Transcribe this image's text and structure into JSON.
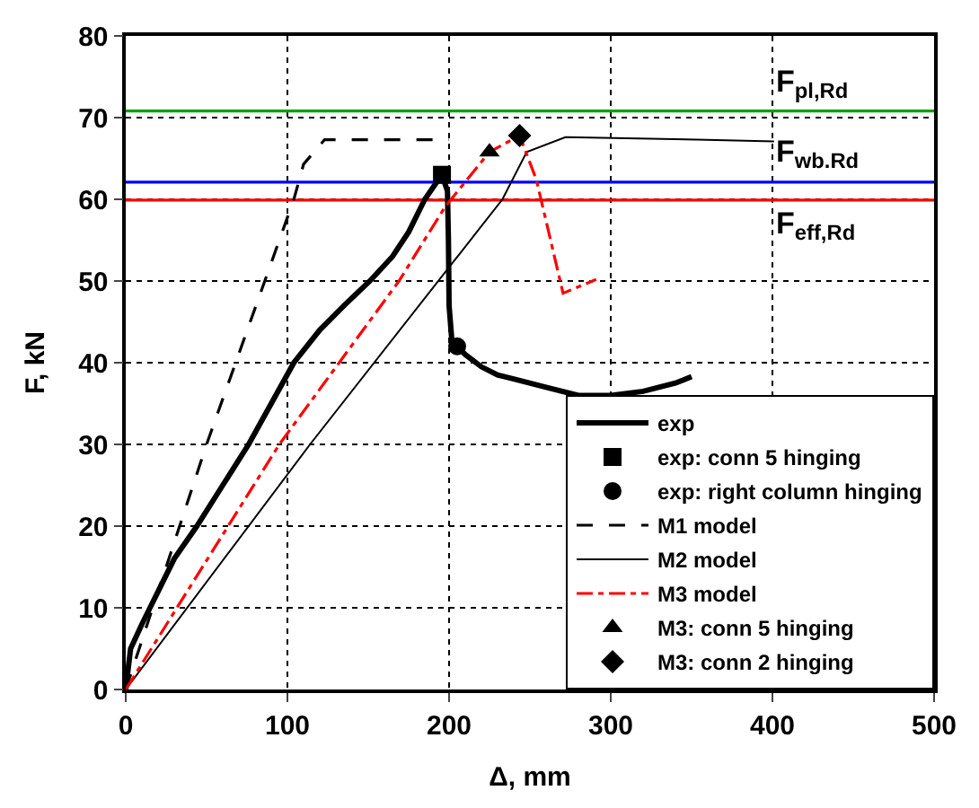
{
  "chart_data": {
    "type": "line",
    "xlabel": "Δ, mm",
    "ylabel": "F, kN",
    "xlim": [
      0,
      500
    ],
    "xticks": [
      0,
      100,
      200,
      300,
      400,
      500
    ],
    "ylim": [
      0,
      80
    ],
    "yticks": [
      0,
      10,
      20,
      30,
      40,
      50,
      60,
      70,
      80
    ],
    "grid": true,
    "legend": "bottom right",
    "series": [
      {
        "name": "exp",
        "color": "#000000",
        "line_style": "solid",
        "marker": "none",
        "x": [
          0,
          3,
          10,
          15,
          20,
          30,
          44,
          60,
          76,
          90,
          104,
          120,
          135,
          151,
          165,
          175,
          185,
          192,
          195.6,
          199,
          199.6,
          200,
          202,
          205,
          210,
          220,
          230,
          240,
          260,
          280,
          300,
          320,
          340,
          350
        ],
        "values": [
          0,
          5,
          8,
          10,
          12,
          16,
          20,
          25,
          30,
          35,
          40,
          44,
          47,
          50,
          53,
          56,
          60,
          62,
          63,
          61,
          55,
          47,
          42,
          42,
          41,
          39.5,
          38.5,
          38,
          37,
          36,
          36,
          36.5,
          37.5,
          38.3
        ]
      },
      {
        "name": "exp: conn 5 hinging",
        "type": "scatter",
        "color": "#000000",
        "marker": "square",
        "x": [
          195.6
        ],
        "values": [
          63
        ]
      },
      {
        "name": "exp: right column hinging",
        "type": "scatter",
        "color": "#000000",
        "marker": "circle",
        "x": [
          205
        ],
        "values": [
          42
        ]
      },
      {
        "name": "M1 model",
        "color": "#000000",
        "line_style": "dashed",
        "marker": "none",
        "x": [
          0,
          50,
          104,
          110,
          123,
          200
        ],
        "values": [
          0,
          30,
          60,
          64.3,
          67.3,
          67.3
        ]
      },
      {
        "name": "M2 model",
        "color": "#000000",
        "line_style": "solid",
        "marker": "none",
        "x": [
          0,
          114,
          233,
          248,
          272,
          353,
          401
        ],
        "values": [
          0,
          30,
          60,
          65.8,
          67.6,
          67.3,
          67.1
        ]
      },
      {
        "name": "M3 model",
        "color": "#ff0000",
        "line_style": "dashdot",
        "marker": "none",
        "x": [
          0,
          95,
          169,
          197.6,
          225,
          243.6,
          254,
          270.5,
          291
        ],
        "values": [
          0,
          30,
          50,
          59.1,
          65.8,
          67.8,
          62.4,
          48.5,
          50.2
        ]
      },
      {
        "name": "M3: conn 5 hinging",
        "type": "scatter",
        "color": "#000000",
        "marker": "triangle",
        "x": [
          225
        ],
        "values": [
          65.8
        ]
      },
      {
        "name": "M3: conn 2 hinging",
        "type": "scatter",
        "color": "#000000",
        "marker": "diamond",
        "x": [
          243.6
        ],
        "values": [
          67.8
        ]
      }
    ],
    "ref_lines": [
      {
        "axis": "y",
        "value": 70.8,
        "label": "F$_{pl,Rd}$",
        "color": "#00a000"
      },
      {
        "axis": "y",
        "value": 62.1,
        "label": "F$_{wb.Rd}$",
        "color": "#0000ff"
      },
      {
        "axis": "y",
        "value": 59.9,
        "label": "F$_{eff,Rd}$",
        "color": "#ff0000"
      }
    ]
  }
}
